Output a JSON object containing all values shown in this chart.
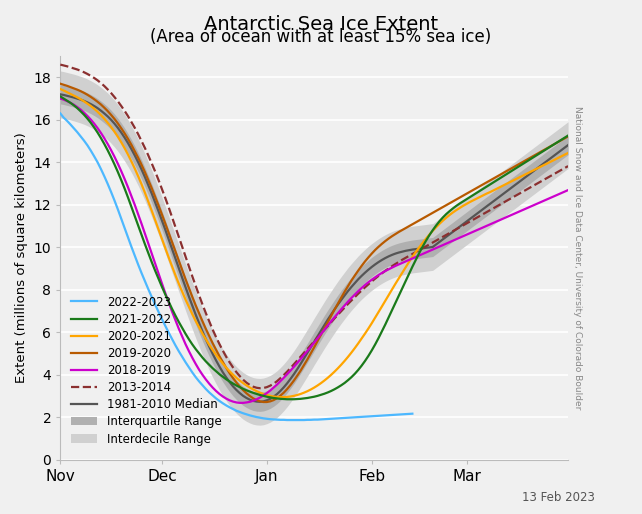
{
  "title_line1": "Antarctic Sea Ice Extent",
  "title_line2": "(Area of ocean with at least 15% sea ice)",
  "ylabel": "Extent (millions of square kilometers)",
  "watermark": "National Snow and Ice Data Center, University of Colorado Boulder",
  "date_label": "13 Feb 2023",
  "ylim": [
    0,
    19
  ],
  "yticks": [
    0,
    2,
    4,
    6,
    8,
    10,
    12,
    14,
    16,
    18
  ],
  "xtick_labels": [
    "Nov",
    "Dec",
    "Jan",
    "Feb",
    "Mar"
  ],
  "xtick_positions": [
    0,
    30,
    61,
    92,
    120
  ],
  "n_days_total": 151,
  "n_days_2023": 105,
  "background_color": "#f0f0f0",
  "grid_color": "#ffffff",
  "series": {
    "2022_2023": {
      "color": "#4db8ff",
      "lw": 1.6,
      "label": "2022-2023",
      "n": 105,
      "values": [
        16.3,
        16.1,
        15.95,
        15.78,
        15.6,
        15.42,
        15.22,
        15.02,
        14.8,
        14.55,
        14.28,
        14.0,
        13.68,
        13.34,
        12.98,
        12.6,
        12.2,
        11.78,
        11.34,
        10.9,
        10.46,
        10.02,
        9.6,
        9.18,
        8.78,
        8.4,
        8.02,
        7.66,
        7.3,
        6.96,
        6.62,
        6.3,
        5.98,
        5.68,
        5.38,
        5.1,
        4.84,
        4.58,
        4.34,
        4.1,
        3.88,
        3.68,
        3.5,
        3.32,
        3.16,
        3.02,
        2.88,
        2.76,
        2.65,
        2.55,
        2.46,
        2.38,
        2.3,
        2.24,
        2.18,
        2.13,
        2.08,
        2.04,
        2.0,
        1.97,
        1.94,
        1.92,
        1.9,
        1.89,
        1.88,
        1.87,
        1.87,
        1.86,
        1.86,
        1.86,
        1.86,
        1.86,
        1.86,
        1.87,
        1.87,
        1.88,
        1.88,
        1.89,
        1.9,
        1.91,
        1.92,
        1.93,
        1.94,
        1.95,
        1.96,
        1.97,
        1.98,
        1.99,
        2.0,
        2.01,
        2.02,
        2.03,
        2.04,
        2.05,
        2.06,
        2.07,
        2.08,
        2.09,
        2.1,
        2.11,
        2.12,
        2.13,
        2.14,
        2.15,
        2.16
      ]
    },
    "2021_2022": {
      "color": "#1a7a1a",
      "lw": 1.6,
      "label": "2021-2022",
      "values": [
        17.1,
        17.0,
        16.9,
        16.8,
        16.68,
        16.55,
        16.4,
        16.24,
        16.06,
        15.86,
        15.64,
        15.4,
        15.14,
        14.86,
        14.56,
        14.24,
        13.9,
        13.54,
        13.16,
        12.76,
        12.34,
        11.9,
        11.46,
        11.02,
        10.58,
        10.14,
        9.72,
        9.3,
        8.9,
        8.52,
        8.14,
        7.78,
        7.44,
        7.1,
        6.78,
        6.48,
        6.2,
        5.92,
        5.66,
        5.42,
        5.2,
        5.0,
        4.8,
        4.62,
        4.46,
        4.3,
        4.16,
        4.02,
        3.9,
        3.78,
        3.68,
        3.58,
        3.49,
        3.41,
        3.33,
        3.26,
        3.2,
        3.14,
        3.09,
        3.04,
        3.0,
        2.96,
        2.93,
        2.9,
        2.88,
        2.86,
        2.85,
        2.84,
        2.84,
        2.84,
        2.85,
        2.86,
        2.88,
        2.9,
        2.93,
        2.96,
        3.0,
        3.05,
        3.1,
        3.16,
        3.23,
        3.31,
        3.4,
        3.5,
        3.61,
        3.74,
        3.88,
        4.04,
        4.22,
        4.42,
        4.64,
        4.88,
        5.14,
        5.42,
        5.72,
        6.04,
        6.36,
        6.7,
        7.04,
        7.38,
        7.72,
        8.06,
        8.4,
        8.74,
        9.08,
        9.4,
        9.72,
        10.02,
        10.3,
        10.56,
        10.8,
        11.02,
        11.22,
        11.4,
        11.56,
        11.7,
        11.83,
        11.95,
        12.06,
        12.16,
        12.26,
        12.36,
        12.46,
        12.56,
        12.66,
        12.76,
        12.86,
        12.96,
        13.06,
        13.16,
        13.26,
        13.36,
        13.46,
        13.56,
        13.66,
        13.76,
        13.86,
        13.96,
        14.06,
        14.16,
        14.26,
        14.36,
        14.46,
        14.56,
        14.66,
        14.76,
        14.86,
        14.96,
        15.06,
        15.16,
        15.26
      ]
    },
    "2020_2021": {
      "color": "#ffa500",
      "lw": 1.6,
      "label": "2020-2021",
      "values": [
        17.45,
        17.38,
        17.3,
        17.22,
        17.14,
        17.06,
        16.97,
        16.87,
        16.76,
        16.65,
        16.52,
        16.38,
        16.22,
        16.05,
        15.86,
        15.66,
        15.44,
        15.2,
        14.94,
        14.66,
        14.36,
        14.04,
        13.7,
        13.34,
        12.96,
        12.56,
        12.14,
        11.72,
        11.28,
        10.84,
        10.4,
        9.96,
        9.52,
        9.1,
        8.68,
        8.28,
        7.9,
        7.53,
        7.18,
        6.84,
        6.52,
        6.22,
        5.93,
        5.66,
        5.4,
        5.16,
        4.93,
        4.72,
        4.52,
        4.33,
        4.16,
        4.0,
        3.85,
        3.72,
        3.6,
        3.49,
        3.39,
        3.3,
        3.22,
        3.15,
        3.09,
        3.04,
        3.0,
        2.97,
        2.95,
        2.94,
        2.94,
        2.95,
        2.97,
        3.0,
        3.04,
        3.09,
        3.15,
        3.22,
        3.3,
        3.39,
        3.49,
        3.6,
        3.72,
        3.85,
        3.99,
        4.14,
        4.3,
        4.47,
        4.65,
        4.84,
        5.04,
        5.25,
        5.47,
        5.7,
        5.93,
        6.17,
        6.42,
        6.68,
        6.94,
        7.21,
        7.48,
        7.75,
        8.02,
        8.28,
        8.54,
        8.8,
        9.05,
        9.3,
        9.54,
        9.77,
        9.99,
        10.2,
        10.4,
        10.59,
        10.77,
        10.94,
        11.1,
        11.25,
        11.39,
        11.52,
        11.64,
        11.75,
        11.85,
        11.95,
        12.04,
        12.13,
        12.21,
        12.29,
        12.37,
        12.45,
        12.53,
        12.6,
        12.68,
        12.76,
        12.84,
        12.92,
        13.0,
        13.08,
        13.16,
        13.24,
        13.32,
        13.4,
        13.48,
        13.56,
        13.64,
        13.72,
        13.8,
        13.88,
        13.96,
        14.04,
        14.12,
        14.2,
        14.28,
        14.36,
        14.44
      ]
    },
    "2019_2020": {
      "color": "#b85a00",
      "lw": 1.6,
      "label": "2019-2020",
      "values": [
        17.7,
        17.65,
        17.6,
        17.54,
        17.48,
        17.42,
        17.35,
        17.27,
        17.18,
        17.08,
        16.97,
        16.85,
        16.72,
        16.57,
        16.41,
        16.23,
        16.04,
        15.83,
        15.6,
        15.36,
        15.1,
        14.82,
        14.52,
        14.21,
        13.88,
        13.53,
        13.16,
        12.78,
        12.38,
        11.97,
        11.55,
        11.12,
        10.68,
        10.24,
        9.8,
        9.36,
        8.92,
        8.49,
        8.07,
        7.66,
        7.26,
        6.88,
        6.51,
        6.15,
        5.81,
        5.48,
        5.17,
        4.87,
        4.59,
        4.32,
        4.07,
        3.84,
        3.63,
        3.44,
        3.27,
        3.12,
        2.99,
        2.88,
        2.8,
        2.74,
        2.71,
        2.71,
        2.74,
        2.8,
        2.89,
        3.01,
        3.15,
        3.32,
        3.51,
        3.72,
        3.95,
        4.19,
        4.45,
        4.72,
        5.0,
        5.29,
        5.58,
        5.87,
        6.17,
        6.47,
        6.77,
        7.06,
        7.35,
        7.63,
        7.91,
        8.17,
        8.43,
        8.67,
        8.9,
        9.12,
        9.33,
        9.52,
        9.7,
        9.87,
        10.02,
        10.16,
        10.29,
        10.41,
        10.52,
        10.62,
        10.72,
        10.81,
        10.9,
        10.99,
        11.08,
        11.17,
        11.26,
        11.35,
        11.44,
        11.53,
        11.62,
        11.71,
        11.8,
        11.89,
        11.98,
        12.07,
        12.16,
        12.25,
        12.34,
        12.43,
        12.52,
        12.61,
        12.7,
        12.79,
        12.88,
        12.97,
        13.06,
        13.15,
        13.24,
        13.33,
        13.42,
        13.51,
        13.6,
        13.69,
        13.78,
        13.87,
        13.96,
        14.05,
        14.14,
        14.23,
        14.32,
        14.41,
        14.5,
        14.59,
        14.68,
        14.77,
        14.86,
        14.95,
        15.04,
        15.13,
        15.22
      ]
    },
    "2018_2019": {
      "color": "#cc00cc",
      "lw": 1.6,
      "label": "2018-2019",
      "values": [
        17.0,
        16.95,
        16.88,
        16.8,
        16.71,
        16.6,
        16.48,
        16.34,
        16.18,
        16.01,
        15.82,
        15.61,
        15.38,
        15.13,
        14.86,
        14.57,
        14.26,
        13.93,
        13.58,
        13.21,
        12.82,
        12.41,
        11.99,
        11.55,
        11.1,
        10.64,
        10.17,
        9.7,
        9.23,
        8.76,
        8.3,
        7.84,
        7.4,
        6.97,
        6.56,
        6.16,
        5.79,
        5.43,
        5.1,
        4.79,
        4.5,
        4.23,
        3.99,
        3.77,
        3.57,
        3.39,
        3.23,
        3.09,
        2.97,
        2.87,
        2.79,
        2.73,
        2.69,
        2.67,
        2.67,
        2.69,
        2.72,
        2.77,
        2.84,
        2.92,
        3.02,
        3.13,
        3.25,
        3.39,
        3.53,
        3.69,
        3.85,
        4.02,
        4.19,
        4.37,
        4.55,
        4.74,
        4.93,
        5.12,
        5.31,
        5.51,
        5.71,
        5.91,
        6.11,
        6.31,
        6.51,
        6.7,
        6.89,
        7.08,
        7.26,
        7.44,
        7.61,
        7.77,
        7.93,
        8.08,
        8.22,
        8.35,
        8.47,
        8.58,
        8.69,
        8.79,
        8.88,
        8.96,
        9.04,
        9.12,
        9.19,
        9.26,
        9.33,
        9.4,
        9.47,
        9.54,
        9.61,
        9.68,
        9.75,
        9.82,
        9.89,
        9.96,
        10.03,
        10.1,
        10.17,
        10.24,
        10.31,
        10.38,
        10.45,
        10.52,
        10.59,
        10.66,
        10.73,
        10.8,
        10.87,
        10.94,
        11.01,
        11.08,
        11.15,
        11.22,
        11.29,
        11.36,
        11.43,
        11.5,
        11.57,
        11.64,
        11.71,
        11.78,
        11.85,
        11.92,
        11.99,
        12.06,
        12.13,
        12.2,
        12.27,
        12.34,
        12.41,
        12.48,
        12.55,
        12.62,
        12.69
      ]
    },
    "2013_2014": {
      "color": "#8B3030",
      "lw": 1.6,
      "ls": "--",
      "label": "2013-2014",
      "values": [
        18.6,
        18.56,
        18.52,
        18.47,
        18.42,
        18.37,
        18.31,
        18.24,
        18.16,
        18.07,
        17.97,
        17.86,
        17.73,
        17.59,
        17.43,
        17.26,
        17.07,
        16.87,
        16.65,
        16.42,
        16.17,
        15.9,
        15.62,
        15.32,
        15.0,
        14.67,
        14.32,
        13.95,
        13.57,
        13.17,
        12.75,
        12.32,
        11.88,
        11.42,
        10.96,
        10.49,
        10.02,
        9.55,
        9.08,
        8.62,
        8.17,
        7.73,
        7.3,
        6.89,
        6.5,
        6.12,
        5.77,
        5.44,
        5.13,
        4.84,
        4.58,
        4.34,
        4.12,
        3.93,
        3.76,
        3.62,
        3.51,
        3.43,
        3.38,
        3.36,
        3.37,
        3.41,
        3.48,
        3.57,
        3.69,
        3.83,
        3.98,
        4.14,
        4.31,
        4.49,
        4.67,
        4.85,
        5.03,
        5.21,
        5.39,
        5.57,
        5.75,
        5.93,
        6.11,
        6.29,
        6.47,
        6.65,
        6.82,
        6.99,
        7.16,
        7.33,
        7.49,
        7.65,
        7.81,
        7.96,
        8.11,
        8.25,
        8.39,
        8.52,
        8.65,
        8.77,
        8.89,
        9.0,
        9.11,
        9.21,
        9.31,
        9.41,
        9.5,
        9.59,
        9.68,
        9.77,
        9.86,
        9.95,
        10.04,
        10.13,
        10.22,
        10.31,
        10.4,
        10.49,
        10.58,
        10.67,
        10.76,
        10.85,
        10.94,
        11.03,
        11.12,
        11.21,
        11.3,
        11.39,
        11.48,
        11.57,
        11.66,
        11.75,
        11.84,
        11.93,
        12.02,
        12.11,
        12.2,
        12.29,
        12.38,
        12.47,
        12.56,
        12.65,
        12.74,
        12.83,
        12.92,
        13.01,
        13.1,
        13.19,
        13.28,
        13.37,
        13.46,
        13.55,
        13.64,
        13.73,
        13.82
      ]
    },
    "median": {
      "color": "#555555",
      "lw": 1.6,
      "label": "1981-2010 Median",
      "values": [
        17.2,
        17.17,
        17.13,
        17.09,
        17.05,
        17.0,
        16.95,
        16.89,
        16.82,
        16.74,
        16.65,
        16.55,
        16.43,
        16.3,
        16.16,
        16.0,
        15.82,
        15.62,
        15.4,
        15.16,
        14.9,
        14.62,
        14.32,
        14.0,
        13.66,
        13.3,
        12.92,
        12.53,
        12.12,
        11.7,
        11.27,
        10.83,
        10.38,
        9.92,
        9.47,
        9.01,
        8.56,
        8.11,
        7.67,
        7.24,
        6.82,
        6.42,
        6.03,
        5.66,
        5.31,
        4.98,
        4.67,
        4.38,
        4.11,
        3.87,
        3.65,
        3.45,
        3.28,
        3.13,
        3.0,
        2.9,
        2.82,
        2.76,
        2.73,
        2.72,
        2.74,
        2.79,
        2.86,
        2.96,
        3.08,
        3.23,
        3.4,
        3.59,
        3.8,
        4.02,
        4.26,
        4.51,
        4.77,
        5.03,
        5.29,
        5.56,
        5.82,
        6.08,
        6.34,
        6.59,
        6.83,
        7.07,
        7.3,
        7.52,
        7.73,
        7.94,
        8.13,
        8.31,
        8.49,
        8.65,
        8.8,
        8.94,
        9.07,
        9.19,
        9.3,
        9.4,
        9.49,
        9.57,
        9.64,
        9.7,
        9.75,
        9.79,
        9.83,
        9.86,
        9.89,
        9.91,
        9.93,
        9.95,
        9.97,
        9.99,
        10.01,
        10.13,
        10.25,
        10.37,
        10.49,
        10.61,
        10.73,
        10.85,
        10.97,
        11.09,
        11.21,
        11.33,
        11.45,
        11.57,
        11.69,
        11.81,
        11.93,
        12.05,
        12.17,
        12.29,
        12.41,
        12.53,
        12.65,
        12.77,
        12.89,
        13.01,
        13.13,
        13.25,
        13.37,
        13.49,
        13.61,
        13.73,
        13.85,
        13.97,
        14.09,
        14.21,
        14.33,
        14.45,
        14.57,
        14.69,
        14.81
      ]
    }
  },
  "interquartile_color": "#b0b0b0",
  "interdecile_color": "#d0d0d0",
  "iq_spread": 0.45,
  "id_spread": 1.1
}
